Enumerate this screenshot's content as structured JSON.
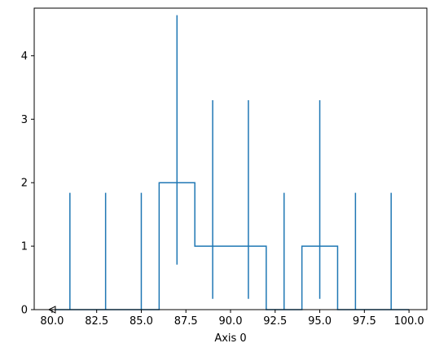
{
  "chart_data": {
    "type": "step",
    "title": "",
    "xlabel": "Axis 0",
    "ylabel": "",
    "xlim": [
      79.0,
      101.0
    ],
    "ylim": [
      0,
      4.75
    ],
    "grid": false,
    "legend": "none",
    "xticks": [
      {
        "value": 80.0,
        "label": "80.0"
      },
      {
        "value": 82.5,
        "label": "82.5"
      },
      {
        "value": 85.0,
        "label": "85.0"
      },
      {
        "value": 87.5,
        "label": "87.5"
      },
      {
        "value": 90.0,
        "label": "90.0"
      },
      {
        "value": 92.5,
        "label": "92.5"
      },
      {
        "value": 95.0,
        "label": "95.0"
      },
      {
        "value": 97.5,
        "label": "97.5"
      },
      {
        "value": 100.0,
        "label": "100.0"
      }
    ],
    "yticks": [
      {
        "value": 0,
        "label": "0"
      },
      {
        "value": 1,
        "label": "1"
      },
      {
        "value": 2,
        "label": "2"
      },
      {
        "value": 3,
        "label": "3"
      },
      {
        "value": 4,
        "label": "4"
      }
    ],
    "step_histogram": {
      "bin_edges": [
        80,
        82,
        84,
        86,
        88,
        90,
        92,
        94,
        96,
        98,
        100
      ],
      "counts": [
        0,
        0,
        0,
        2,
        1,
        1,
        0,
        1,
        0,
        0
      ]
    },
    "error_bars": [
      {
        "x": 81,
        "ymin": 0.0,
        "ymax": 1.84
      },
      {
        "x": 83,
        "ymin": 0.0,
        "ymax": 1.84
      },
      {
        "x": 85,
        "ymin": 0.0,
        "ymax": 1.84
      },
      {
        "x": 87,
        "ymin": 0.71,
        "ymax": 4.64
      },
      {
        "x": 89,
        "ymin": 0.17,
        "ymax": 3.3
      },
      {
        "x": 91,
        "ymin": 0.17,
        "ymax": 3.3
      },
      {
        "x": 93,
        "ymin": 0.0,
        "ymax": 1.84
      },
      {
        "x": 95,
        "ymin": 0.17,
        "ymax": 3.3
      },
      {
        "x": 97,
        "ymin": 0.0,
        "ymax": 1.84
      },
      {
        "x": 99,
        "ymin": 0.0,
        "ymax": 1.84
      }
    ],
    "marker": {
      "x": 80.0,
      "y": 0.0,
      "shape": "triangle-left"
    },
    "color": "#1f77b4"
  }
}
